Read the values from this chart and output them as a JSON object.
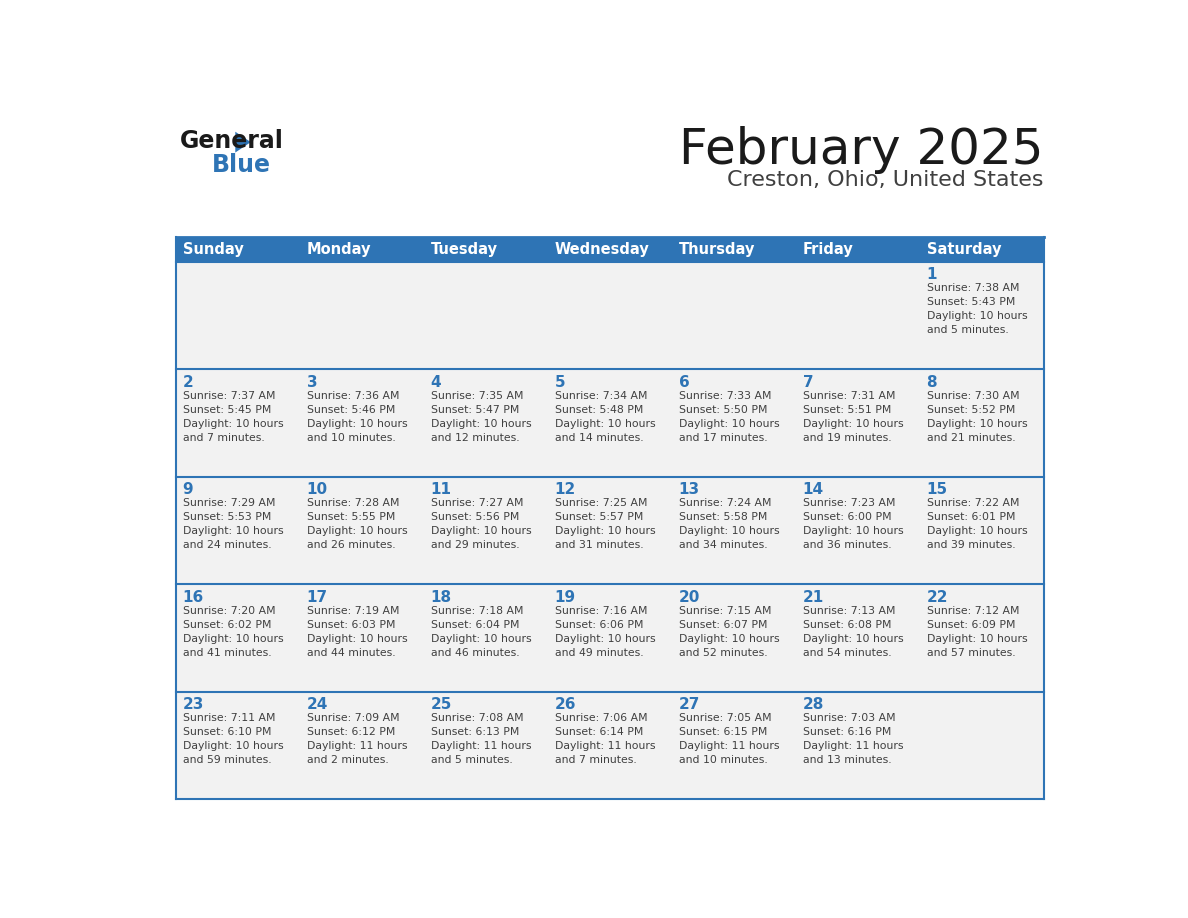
{
  "title": "February 2025",
  "subtitle": "Creston, Ohio, United States",
  "days_of_week": [
    "Sunday",
    "Monday",
    "Tuesday",
    "Wednesday",
    "Thursday",
    "Friday",
    "Saturday"
  ],
  "header_bg": "#2E74B5",
  "header_text_color": "#FFFFFF",
  "cell_bg": "#F2F2F2",
  "border_color": "#2E74B5",
  "day_num_color": "#2E74B5",
  "cell_text_color": "#404040",
  "title_color": "#1A1A1A",
  "subtitle_color": "#404040",
  "logo_general_color": "#1A1A1A",
  "logo_blue_color": "#2E74B5",
  "calendar_data": [
    [
      {
        "day": null,
        "info": null
      },
      {
        "day": null,
        "info": null
      },
      {
        "day": null,
        "info": null
      },
      {
        "day": null,
        "info": null
      },
      {
        "day": null,
        "info": null
      },
      {
        "day": null,
        "info": null
      },
      {
        "day": 1,
        "info": "Sunrise: 7:38 AM\nSunset: 5:43 PM\nDaylight: 10 hours\nand 5 minutes."
      }
    ],
    [
      {
        "day": 2,
        "info": "Sunrise: 7:37 AM\nSunset: 5:45 PM\nDaylight: 10 hours\nand 7 minutes."
      },
      {
        "day": 3,
        "info": "Sunrise: 7:36 AM\nSunset: 5:46 PM\nDaylight: 10 hours\nand 10 minutes."
      },
      {
        "day": 4,
        "info": "Sunrise: 7:35 AM\nSunset: 5:47 PM\nDaylight: 10 hours\nand 12 minutes."
      },
      {
        "day": 5,
        "info": "Sunrise: 7:34 AM\nSunset: 5:48 PM\nDaylight: 10 hours\nand 14 minutes."
      },
      {
        "day": 6,
        "info": "Sunrise: 7:33 AM\nSunset: 5:50 PM\nDaylight: 10 hours\nand 17 minutes."
      },
      {
        "day": 7,
        "info": "Sunrise: 7:31 AM\nSunset: 5:51 PM\nDaylight: 10 hours\nand 19 minutes."
      },
      {
        "day": 8,
        "info": "Sunrise: 7:30 AM\nSunset: 5:52 PM\nDaylight: 10 hours\nand 21 minutes."
      }
    ],
    [
      {
        "day": 9,
        "info": "Sunrise: 7:29 AM\nSunset: 5:53 PM\nDaylight: 10 hours\nand 24 minutes."
      },
      {
        "day": 10,
        "info": "Sunrise: 7:28 AM\nSunset: 5:55 PM\nDaylight: 10 hours\nand 26 minutes."
      },
      {
        "day": 11,
        "info": "Sunrise: 7:27 AM\nSunset: 5:56 PM\nDaylight: 10 hours\nand 29 minutes."
      },
      {
        "day": 12,
        "info": "Sunrise: 7:25 AM\nSunset: 5:57 PM\nDaylight: 10 hours\nand 31 minutes."
      },
      {
        "day": 13,
        "info": "Sunrise: 7:24 AM\nSunset: 5:58 PM\nDaylight: 10 hours\nand 34 minutes."
      },
      {
        "day": 14,
        "info": "Sunrise: 7:23 AM\nSunset: 6:00 PM\nDaylight: 10 hours\nand 36 minutes."
      },
      {
        "day": 15,
        "info": "Sunrise: 7:22 AM\nSunset: 6:01 PM\nDaylight: 10 hours\nand 39 minutes."
      }
    ],
    [
      {
        "day": 16,
        "info": "Sunrise: 7:20 AM\nSunset: 6:02 PM\nDaylight: 10 hours\nand 41 minutes."
      },
      {
        "day": 17,
        "info": "Sunrise: 7:19 AM\nSunset: 6:03 PM\nDaylight: 10 hours\nand 44 minutes."
      },
      {
        "day": 18,
        "info": "Sunrise: 7:18 AM\nSunset: 6:04 PM\nDaylight: 10 hours\nand 46 minutes."
      },
      {
        "day": 19,
        "info": "Sunrise: 7:16 AM\nSunset: 6:06 PM\nDaylight: 10 hours\nand 49 minutes."
      },
      {
        "day": 20,
        "info": "Sunrise: 7:15 AM\nSunset: 6:07 PM\nDaylight: 10 hours\nand 52 minutes."
      },
      {
        "day": 21,
        "info": "Sunrise: 7:13 AM\nSunset: 6:08 PM\nDaylight: 10 hours\nand 54 minutes."
      },
      {
        "day": 22,
        "info": "Sunrise: 7:12 AM\nSunset: 6:09 PM\nDaylight: 10 hours\nand 57 minutes."
      }
    ],
    [
      {
        "day": 23,
        "info": "Sunrise: 7:11 AM\nSunset: 6:10 PM\nDaylight: 10 hours\nand 59 minutes."
      },
      {
        "day": 24,
        "info": "Sunrise: 7:09 AM\nSunset: 6:12 PM\nDaylight: 11 hours\nand 2 minutes."
      },
      {
        "day": 25,
        "info": "Sunrise: 7:08 AM\nSunset: 6:13 PM\nDaylight: 11 hours\nand 5 minutes."
      },
      {
        "day": 26,
        "info": "Sunrise: 7:06 AM\nSunset: 6:14 PM\nDaylight: 11 hours\nand 7 minutes."
      },
      {
        "day": 27,
        "info": "Sunrise: 7:05 AM\nSunset: 6:15 PM\nDaylight: 11 hours\nand 10 minutes."
      },
      {
        "day": 28,
        "info": "Sunrise: 7:03 AM\nSunset: 6:16 PM\nDaylight: 11 hours\nand 13 minutes."
      },
      {
        "day": null,
        "info": null
      }
    ]
  ]
}
